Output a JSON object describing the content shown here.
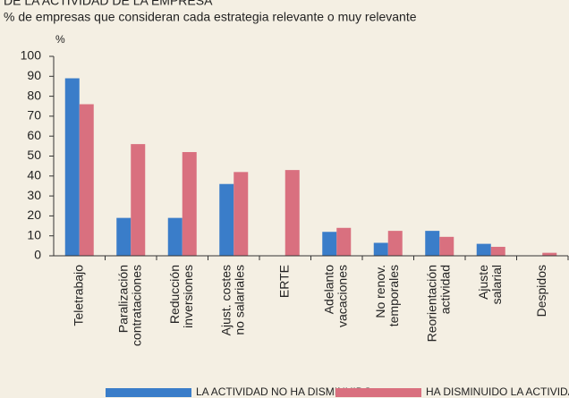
{
  "chart_data": {
    "type": "bar",
    "title": "DE LA ACTIVIDAD DE LA EMPRESA",
    "subtitle": "% de empresas que consideran cada estrategia relevante o muy relevante",
    "y_label": "%",
    "categories": [
      [
        "Teletrabajo"
      ],
      [
        "Paralización",
        "contrataciones"
      ],
      [
        "Reducción",
        "inversiones"
      ],
      [
        "Ajust. costes",
        "no salariales"
      ],
      [
        "ERTE"
      ],
      [
        "Adelanto",
        "vacaciones"
      ],
      [
        "No renov.",
        "temporales"
      ],
      [
        "Reorientación",
        "actividad"
      ],
      [
        "Ajuste",
        "salarial"
      ],
      [
        "Despidos"
      ]
    ],
    "series": [
      {
        "name": "LA ACTIVIDAD NO HA DISMINUIDO",
        "color": "#3a7dc9",
        "values": [
          89,
          19,
          19,
          36,
          0,
          12,
          6.5,
          12.5,
          6,
          0
        ]
      },
      {
        "name": "HA DISMINUIDO LA ACTIVIDAD",
        "color": "#d9707f",
        "values": [
          76,
          56,
          52,
          42,
          43,
          14,
          12.5,
          9.5,
          4.5,
          1.5
        ]
      }
    ],
    "ylim": [
      0,
      100
    ],
    "yticks": [
      0,
      10,
      20,
      30,
      40,
      50,
      60,
      70,
      80,
      90,
      100
    ]
  }
}
